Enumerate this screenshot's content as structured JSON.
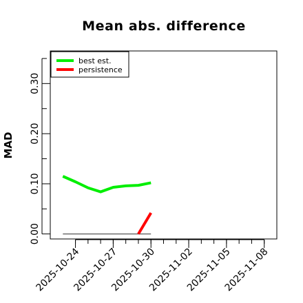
{
  "chart_data": {
    "type": "line",
    "title": "Mean abs. difference",
    "xlabel": "",
    "ylabel": "MAD",
    "x_ticks": [
      "2025-10-24",
      "2025-10-27",
      "2025-10-30",
      "2025-11-02",
      "2025-11-05",
      "2025-11-08"
    ],
    "y_ticks": [
      "0.00",
      "0.10",
      "0.20",
      "0.30"
    ],
    "y_tick_values": [
      0.0,
      0.1,
      0.2,
      0.3
    ],
    "y_minor_tick_values": [
      0.05,
      0.15,
      0.25,
      0.35
    ],
    "xlim": [
      "2025-10-22",
      "2025-11-09"
    ],
    "ylim": [
      -0.01,
      0.365
    ],
    "legend_position": "top-left",
    "grid": false,
    "series": [
      {
        "name": "best est.",
        "color": "#00ee00",
        "x": [
          "2025-10-23",
          "2025-10-24",
          "2025-10-25",
          "2025-10-26",
          "2025-10-27",
          "2025-10-28",
          "2025-10-29",
          "2025-10-30"
        ],
        "y": [
          0.115,
          0.104,
          0.092,
          0.084,
          0.093,
          0.096,
          0.097,
          0.102
        ]
      },
      {
        "name": "persistence",
        "color": "#ff0000",
        "x": [
          "2025-10-29",
          "2025-10-30"
        ],
        "y": [
          0.0,
          0.042
        ]
      }
    ],
    "reference_line": {
      "color": "#555555",
      "x": [
        "2025-10-23",
        "2025-10-30"
      ],
      "y": [
        0.0,
        0.0
      ]
    }
  }
}
